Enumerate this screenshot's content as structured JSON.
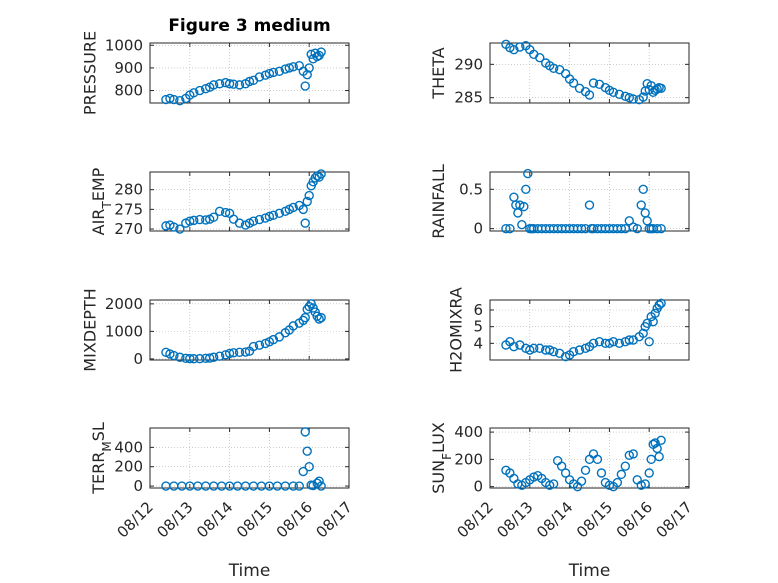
{
  "chart_data": [
    {
      "id": "pressure",
      "type": "scatter",
      "title": "Figure 3 medium",
      "ylabel": "PRESSURE",
      "xlabel": "",
      "ylim": [
        745,
        1010
      ],
      "yticks": [
        "800",
        "900",
        "1000"
      ],
      "xlim": [
        0,
        5
      ],
      "grid": true,
      "color": "#0072BD",
      "x": [
        0.4,
        0.5,
        0.6,
        0.75,
        0.9,
        1.0,
        1.1,
        1.25,
        1.4,
        1.5,
        1.6,
        1.75,
        1.9,
        2.0,
        2.1,
        2.25,
        2.4,
        2.5,
        2.6,
        2.75,
        2.9,
        3.0,
        3.1,
        3.25,
        3.4,
        3.5,
        3.6,
        3.75,
        3.85,
        3.9,
        3.95,
        4.0,
        4.05,
        4.1,
        4.15,
        4.2,
        4.25,
        4.3
      ],
      "y": [
        760,
        765,
        760,
        755,
        765,
        780,
        790,
        800,
        808,
        815,
        825,
        830,
        835,
        830,
        828,
        825,
        830,
        840,
        845,
        860,
        868,
        875,
        880,
        885,
        895,
        900,
        905,
        910,
        885,
        820,
        870,
        900,
        960,
        940,
        965,
        950,
        955,
        970
      ]
    },
    {
      "id": "theta",
      "type": "scatter",
      "title": "",
      "ylabel": "THETA",
      "xlabel": "",
      "ylim": [
        284.2,
        293.2
      ],
      "yticks": [
        "285",
        "290"
      ],
      "xlim": [
        0,
        5
      ],
      "grid": true,
      "color": "#0072BD",
      "x": [
        0.4,
        0.5,
        0.6,
        0.75,
        0.9,
        1.0,
        1.1,
        1.25,
        1.4,
        1.5,
        1.6,
        1.75,
        1.9,
        2.0,
        2.1,
        2.25,
        2.4,
        2.5,
        2.6,
        2.75,
        2.9,
        3.0,
        3.1,
        3.25,
        3.4,
        3.5,
        3.6,
        3.75,
        3.85,
        3.9,
        3.95,
        4.0,
        4.05,
        4.1,
        4.15,
        4.2,
        4.25,
        4.3
      ],
      "y": [
        293,
        292.5,
        292.2,
        292.6,
        292.8,
        292.2,
        291.5,
        291,
        290.2,
        289.8,
        289.4,
        289.2,
        288.6,
        287.8,
        287.2,
        286.4,
        285.9,
        285.4,
        287.2,
        287,
        286.5,
        286.1,
        285.8,
        285.5,
        285.2,
        285,
        284.8,
        284.7,
        285.1,
        286,
        287.1,
        286.2,
        286.8,
        285.8,
        286.1,
        286.3,
        286.5,
        286.4
      ]
    },
    {
      "id": "airtemp",
      "type": "scatter",
      "title": "",
      "ylabel": "AIR_TEMP",
      "xlabel": "",
      "ylim": [
        269.5,
        284.5
      ],
      "yticks": [
        "270",
        "275",
        "280"
      ],
      "xlim": [
        0,
        5
      ],
      "grid": true,
      "color": "#0072BD",
      "x": [
        0.4,
        0.5,
        0.6,
        0.75,
        0.9,
        1.0,
        1.1,
        1.25,
        1.4,
        1.5,
        1.6,
        1.75,
        1.9,
        2.0,
        2.1,
        2.25,
        2.4,
        2.5,
        2.6,
        2.75,
        2.9,
        3.0,
        3.1,
        3.25,
        3.4,
        3.5,
        3.6,
        3.75,
        3.85,
        3.9,
        3.95,
        4.0,
        4.05,
        4.1,
        4.15,
        4.2,
        4.25,
        4.3
      ],
      "y": [
        270.8,
        271,
        270.5,
        270,
        271.5,
        272,
        272.2,
        272.4,
        272.3,
        272.5,
        273,
        274.5,
        274.2,
        274,
        272.5,
        271.5,
        271,
        271.5,
        272,
        272.4,
        272.8,
        273.2,
        273.5,
        274,
        274.5,
        275,
        275.5,
        276,
        275,
        271.5,
        277,
        278.5,
        281,
        282,
        283,
        283.5,
        283.2,
        284
      ]
    },
    {
      "id": "rainfall",
      "type": "scatter",
      "title": "",
      "ylabel": "RAINFALL",
      "xlabel": "",
      "ylim": [
        -0.03,
        0.72
      ],
      "yticks": [
        "0",
        "0.5"
      ],
      "xlim": [
        0,
        5
      ],
      "grid": true,
      "color": "#0072BD",
      "x": [
        0.4,
        0.5,
        0.6,
        0.65,
        0.7,
        0.75,
        0.8,
        0.85,
        0.9,
        0.95,
        1.0,
        1.05,
        1.1,
        1.2,
        1.3,
        1.4,
        1.5,
        1.6,
        1.7,
        1.8,
        1.9,
        2.0,
        2.1,
        2.2,
        2.3,
        2.4,
        2.5,
        2.55,
        2.6,
        2.7,
        2.8,
        2.9,
        3.0,
        3.1,
        3.2,
        3.3,
        3.4,
        3.5,
        3.6,
        3.7,
        3.8,
        3.85,
        3.9,
        3.95,
        4.0,
        4.05,
        4.1,
        4.2,
        4.3
      ],
      "y": [
        0,
        0,
        0.4,
        0.3,
        0.2,
        0.3,
        0.05,
        0.28,
        0.5,
        0.7,
        0,
        0,
        0,
        0,
        0,
        0,
        0,
        0,
        0,
        0,
        0,
        0,
        0,
        0,
        0,
        0,
        0.3,
        0,
        0,
        0,
        0,
        0,
        0,
        0,
        0,
        0,
        0,
        0.1,
        0.02,
        0,
        0.3,
        0.5,
        0.2,
        0.1,
        0,
        0,
        0,
        0,
        0
      ]
    },
    {
      "id": "mixdepth",
      "type": "scatter",
      "title": "",
      "ylabel": "MIXDEPTH",
      "xlabel": "",
      "ylim": [
        -40,
        2140
      ],
      "yticks": [
        "0",
        "1000",
        "2000"
      ],
      "xlim": [
        0,
        5
      ],
      "grid": true,
      "color": "#0072BD",
      "x": [
        0.4,
        0.5,
        0.6,
        0.75,
        0.9,
        1.0,
        1.1,
        1.25,
        1.4,
        1.5,
        1.6,
        1.75,
        1.9,
        2.0,
        2.1,
        2.25,
        2.4,
        2.5,
        2.6,
        2.75,
        2.9,
        3.0,
        3.1,
        3.25,
        3.4,
        3.5,
        3.6,
        3.75,
        3.85,
        3.9,
        3.95,
        4.0,
        4.05,
        4.1,
        4.15,
        4.2,
        4.25,
        4.3
      ],
      "y": [
        240,
        180,
        120,
        60,
        20,
        10,
        5,
        10,
        20,
        30,
        60,
        100,
        150,
        200,
        220,
        240,
        250,
        280,
        450,
        500,
        560,
        620,
        700,
        800,
        950,
        1050,
        1200,
        1300,
        1400,
        1500,
        1800,
        1900,
        2000,
        1850,
        1700,
        1550,
        1450,
        1500
      ]
    },
    {
      "id": "h2omixra",
      "type": "scatter",
      "title": "",
      "ylabel": "H2OMIXRA",
      "xlabel": "",
      "ylim": [
        3.0,
        6.6
      ],
      "yticks": [
        "4",
        "5",
        "6"
      ],
      "xlim": [
        0,
        5
      ],
      "grid": true,
      "color": "#0072BD",
      "x": [
        0.4,
        0.5,
        0.6,
        0.75,
        0.9,
        1.0,
        1.1,
        1.25,
        1.4,
        1.5,
        1.6,
        1.75,
        1.9,
        2.0,
        2.1,
        2.25,
        2.4,
        2.5,
        2.6,
        2.75,
        2.9,
        3.0,
        3.1,
        3.25,
        3.4,
        3.5,
        3.6,
        3.75,
        3.85,
        3.9,
        3.95,
        4.0,
        4.05,
        4.1,
        4.15,
        4.2,
        4.25,
        4.3
      ],
      "y": [
        3.9,
        4.1,
        3.8,
        3.9,
        3.7,
        3.6,
        3.7,
        3.7,
        3.6,
        3.6,
        3.5,
        3.4,
        3.2,
        3.3,
        3.5,
        3.6,
        3.7,
        3.8,
        4.0,
        4.1,
        4.0,
        4.0,
        4.1,
        4.0,
        4.1,
        4.2,
        4.2,
        4.4,
        4.6,
        5.0,
        5.2,
        4.1,
        5.6,
        5.3,
        5.8,
        6.1,
        6.3,
        6.4
      ]
    },
    {
      "id": "terrmsl",
      "type": "scatter",
      "title": "",
      "ylabel": "TERR_MSL",
      "xlabel": "Time",
      "ylim": [
        -20,
        600
      ],
      "yticks": [
        "0",
        "200",
        "400"
      ],
      "xlim": [
        0,
        5
      ],
      "xticks": [
        "08/12",
        "08/13",
        "08/14",
        "08/15",
        "08/16",
        "08/17"
      ],
      "grid": true,
      "color": "#0072BD",
      "x": [
        0.4,
        0.6,
        0.8,
        1.0,
        1.2,
        1.4,
        1.6,
        1.8,
        2.0,
        2.2,
        2.4,
        2.6,
        2.8,
        3.0,
        3.2,
        3.4,
        3.6,
        3.75,
        3.85,
        3.9,
        3.95,
        4.0,
        4.05,
        4.1,
        4.2,
        4.25,
        4.3
      ],
      "y": [
        0,
        0,
        0,
        0,
        0,
        0,
        0,
        0,
        0,
        0,
        0,
        0,
        0,
        0,
        0,
        0,
        0,
        0,
        150,
        560,
        360,
        200,
        10,
        5,
        30,
        50,
        0
      ]
    },
    {
      "id": "sunflux",
      "type": "scatter",
      "title": "",
      "ylabel": "SUN_FLUX",
      "xlabel": "Time",
      "ylim": [
        -10,
        430
      ],
      "yticks": [
        "0",
        "200",
        "400"
      ],
      "xlim": [
        0,
        5
      ],
      "xticks": [
        "08/12",
        "08/13",
        "08/14",
        "08/15",
        "08/16",
        "08/17"
      ],
      "grid": true,
      "color": "#0072BD",
      "x": [
        0.4,
        0.5,
        0.6,
        0.7,
        0.8,
        0.9,
        1.0,
        1.1,
        1.2,
        1.3,
        1.4,
        1.5,
        1.6,
        1.7,
        1.8,
        1.9,
        2.0,
        2.1,
        2.2,
        2.3,
        2.4,
        2.5,
        2.6,
        2.7,
        2.8,
        2.9,
        3.0,
        3.1,
        3.2,
        3.3,
        3.4,
        3.5,
        3.6,
        3.7,
        3.8,
        3.9,
        4.0,
        4.05,
        4.1,
        4.15,
        4.2,
        4.25,
        4.3
      ],
      "y": [
        120,
        100,
        60,
        20,
        10,
        30,
        50,
        70,
        80,
        60,
        30,
        10,
        20,
        190,
        150,
        100,
        50,
        20,
        0,
        40,
        120,
        200,
        240,
        200,
        100,
        30,
        10,
        0,
        30,
        90,
        150,
        230,
        240,
        50,
        10,
        20,
        100,
        200,
        310,
        320,
        280,
        220,
        340
      ]
    }
  ]
}
